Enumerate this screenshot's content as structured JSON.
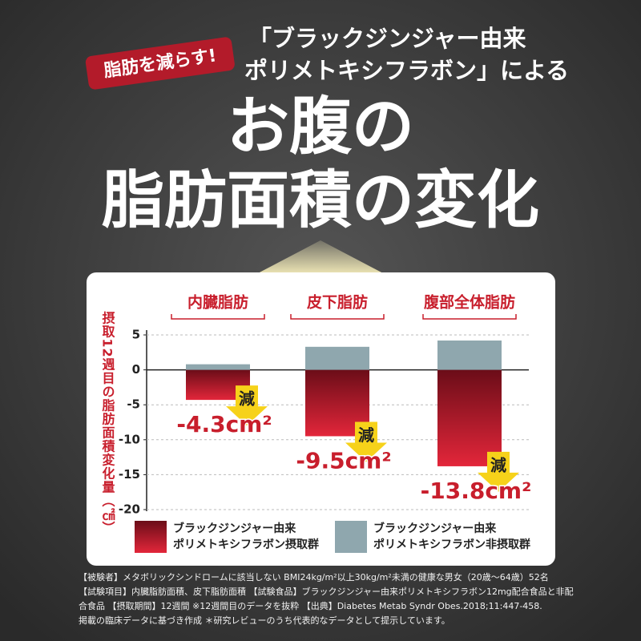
{
  "badge": "脂肪を減らす!",
  "headline": [
    "「ブラックジンジャー由来",
    "ポリメトキシフラボン」による"
  ],
  "title": [
    "お腹の",
    "脂肪面積の変化"
  ],
  "chart_data": {
    "type": "bar",
    "y_label": "摂取12週目の脂肪面積変化量（㎠）",
    "categories": [
      "内臓脂肪",
      "皮下脂肪",
      "腹部全体脂肪"
    ],
    "series": [
      {
        "name": "ブラックジンジャー由来\nポリメトキシフラボン摂取群",
        "color": "#c81e2c",
        "values": [
          -4.3,
          -9.5,
          -13.8
        ],
        "value_labels": [
          "-4.3cm²",
          "-9.5cm²",
          "-13.8cm²"
        ]
      },
      {
        "name": "ブラックジンジャー由来\nポリメトキシフラボン非摂取群",
        "color": "#8fa7ae",
        "values": [
          0.8,
          3.3,
          4.2
        ]
      }
    ],
    "decrease_label": "減",
    "ylim": [
      -20,
      5
    ],
    "yticks": [
      5,
      0,
      -5,
      -10,
      -15,
      -20
    ],
    "grid": true
  },
  "footnotes": [
    "【被験者】メタボリックシンドロームに該当しない BMI24kg/m²以上30kg/m²未満の健康な男女（20歳〜64歳）52名",
    "【試験項目】内臓脂肪面積、皮下脂肪面積 【試験食品】ブラックジンジャー由来ポリメトキシフラボン12mg配合食品と非配合食品 【摂取期間】12週間 ※12週間目のデータを抜粋 【出典】Diabetes Metab Syndr Obes.2018;11:447-458.",
    "掲載の臨床データに基づき作成 ＊研究レビューのうち代表的なデータとして提示しています。"
  ]
}
